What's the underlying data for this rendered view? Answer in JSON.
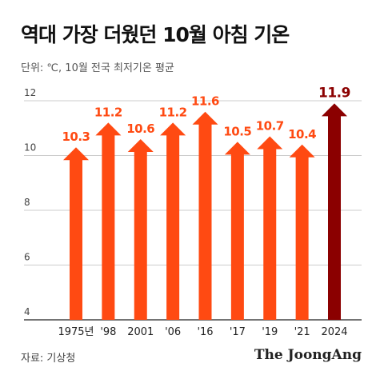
{
  "title": "역대 가장 더웠던 10월 아침 기온",
  "subtitle": "단위: ℃, 10월 전국 최저기온 평균",
  "source": "자료: 기상청",
  "brand": "The JoongAng",
  "colors": {
    "bar": "#ff4a12",
    "highlight": "#8b0000",
    "label": "#ff4a12",
    "label_highlight": "#8b0000",
    "grid": "#cccccc",
    "axis": "#222222"
  },
  "chart_data": {
    "type": "bar",
    "categories": [
      "1975년",
      "'98",
      "2001",
      "'06",
      "'16",
      "'17",
      "'19",
      "'21",
      "2024"
    ],
    "values": [
      10.3,
      11.2,
      10.6,
      11.2,
      11.6,
      10.5,
      10.7,
      10.4,
      11.9
    ],
    "value_labels": [
      "10.3",
      "11.2",
      "10.6",
      "11.2",
      "11.6",
      "10.5",
      "10.7",
      "10.4",
      "11.9"
    ],
    "highlight_index": 8,
    "ylim": [
      4,
      12
    ],
    "yticks": [
      4,
      6,
      8,
      10,
      12
    ],
    "ytick_labels": [
      "4",
      "6",
      "8",
      "10",
      "12"
    ],
    "grid": true,
    "bar_style": "arrow"
  }
}
